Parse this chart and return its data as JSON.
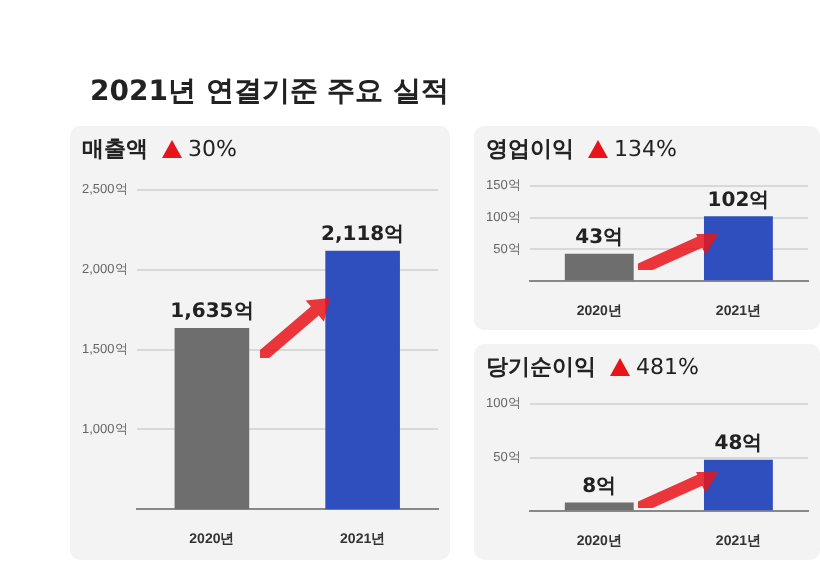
{
  "chart_data": [
    {
      "type": "bar",
      "title": "2021년 연결기준 주요 실적",
      "subtitle": "매출액",
      "annotations": [
        "30%"
      ],
      "categories": [
        "2020년",
        "2021년"
      ],
      "values": [
        1635,
        2118
      ],
      "colors": [
        "#6e6e6e",
        "#2f4fbf"
      ],
      "value_labels": [
        "1,635억",
        "2,118억"
      ],
      "ylim": [
        500,
        2500
      ],
      "yticks": [
        {
          "value": 500,
          "label": null
        },
        {
          "value": 1000,
          "label": "1,000억"
        },
        {
          "value": 1500,
          "label": "1,500억"
        },
        {
          "value": 2000,
          "label": "2,000억"
        },
        {
          "value": 2500,
          "label": "2,500억"
        }
      ],
      "grid": "y",
      "legend": false
    },
    {
      "type": "bar",
      "subtitle": "영업이익",
      "annotations": [
        "134%"
      ],
      "categories": [
        "2020년",
        "2021년"
      ],
      "values": [
        43,
        102
      ],
      "colors": [
        "#6e6e6e",
        "#2f4fbf"
      ],
      "value_labels": [
        "43억",
        "102억"
      ],
      "ylim": [
        0,
        150
      ],
      "yticks": [
        {
          "value": 0,
          "label": null
        },
        {
          "value": 50,
          "label": "50억"
        },
        {
          "value": 100,
          "label": "100억"
        },
        {
          "value": 150,
          "label": "150억"
        }
      ],
      "grid": "y",
      "legend": false
    },
    {
      "type": "bar",
      "subtitle": "당기순이익",
      "annotations": [
        "481%"
      ],
      "categories": [
        "2020년",
        "2021년"
      ],
      "values": [
        8,
        48
      ],
      "colors": [
        "#6e6e6e",
        "#2f4fbf"
      ],
      "value_labels": [
        "8억",
        "48억"
      ],
      "ylim": [
        0,
        100
      ],
      "yticks": [
        {
          "value": 0,
          "label": null
        },
        {
          "value": 50,
          "label": "50억"
        },
        {
          "value": 100,
          "label": "100억"
        }
      ],
      "grid": "y",
      "legend": false
    }
  ]
}
